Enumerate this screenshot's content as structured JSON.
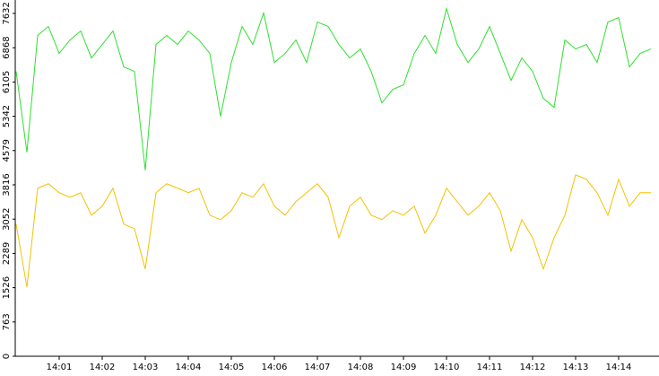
{
  "chart_data": {
    "type": "line",
    "categories": [
      null,
      null,
      null,
      null,
      "14:01",
      null,
      null,
      null,
      "14:02",
      null,
      null,
      null,
      "14:03",
      null,
      null,
      null,
      "14:04",
      null,
      null,
      null,
      "14:05",
      null,
      null,
      null,
      "14:06",
      null,
      null,
      null,
      "14:07",
      null,
      null,
      null,
      "14:08",
      null,
      null,
      null,
      "14:09",
      null,
      null,
      null,
      "14:10",
      null,
      null,
      null,
      "14:11",
      null,
      null,
      null,
      "14:12",
      null,
      null,
      null,
      "14:13",
      null,
      null,
      null,
      "14:14",
      null,
      null,
      null
    ],
    "series": [
      {
        "color": "#2ee02e",
        "values": [
          6340,
          4540,
          7140,
          7340,
          6740,
          7040,
          7240,
          6640,
          6940,
          7240,
          6440,
          6340,
          4140,
          6940,
          7140,
          6940,
          7240,
          7040,
          6740,
          5340,
          6540,
          7340,
          6940,
          7640,
          6540,
          6740,
          7040,
          6540,
          7440,
          7340,
          6940,
          6640,
          6840,
          6340,
          5640,
          5940,
          6040,
          6740,
          7140,
          6740,
          7740,
          6940,
          6540,
          6840,
          7340,
          6740,
          6140,
          6640,
          6340,
          5740,
          5540,
          7040,
          6840,
          6940,
          6540,
          7440,
          7540,
          6440,
          6740,
          6840
        ]
      },
      {
        "color": "#f2c200",
        "values": [
          2940,
          1540,
          3740,
          3840,
          3640,
          3540,
          3640,
          3140,
          3340,
          3740,
          2940,
          2840,
          1940,
          3640,
          3840,
          3740,
          3640,
          3740,
          3140,
          3040,
          3240,
          3640,
          3540,
          3840,
          3340,
          3140,
          3440,
          3640,
          3840,
          3540,
          2640,
          3340,
          3540,
          3140,
          3040,
          3240,
          3140,
          3340,
          2740,
          3140,
          3740,
          3440,
          3140,
          3340,
          3640,
          3240,
          2340,
          3040,
          2640,
          1940,
          2640,
          3140,
          4040,
          3940,
          3640,
          3140,
          3940,
          3340,
          3640,
          3640
        ]
      }
    ],
    "ylim": [
      0,
      7930
    ],
    "yticks": [
      0,
      763,
      1526,
      2289,
      3052,
      3816,
      4579,
      5342,
      6105,
      6868,
      7632
    ]
  }
}
